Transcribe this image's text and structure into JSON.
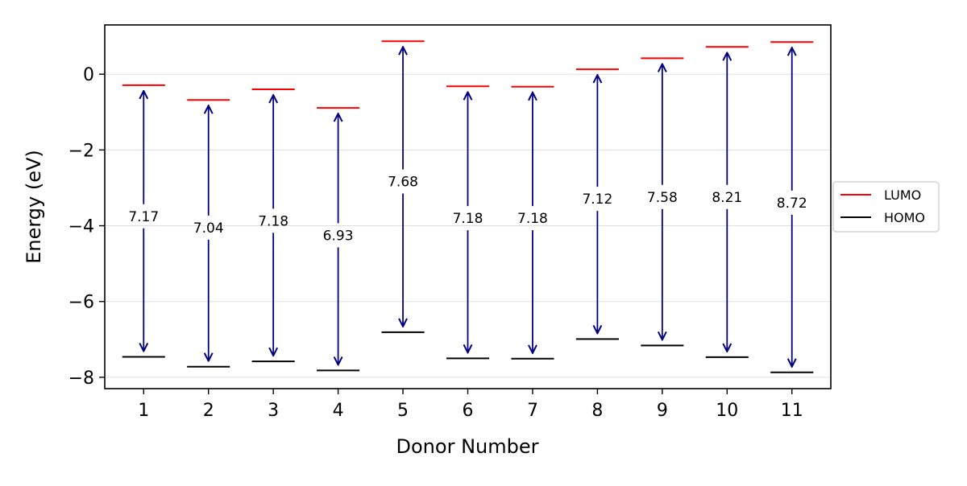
{
  "chart_data": {
    "type": "energy-level",
    "xlabel": "Donor Number",
    "ylabel": "Energy (eV)",
    "categories": [
      "1",
      "2",
      "3",
      "4",
      "5",
      "6",
      "7",
      "8",
      "9",
      "10",
      "11"
    ],
    "x": [
      1,
      2,
      3,
      4,
      5,
      6,
      7,
      8,
      9,
      10,
      11
    ],
    "xlim": [
      0.4,
      11.6
    ],
    "ylim": [
      -8.3,
      1.3
    ],
    "yticks": [
      0,
      -2,
      -4,
      -6,
      -8
    ],
    "ytick_labels": [
      "0",
      "−2",
      "−4",
      "−6",
      "−8"
    ],
    "grid": true,
    "legend_position": "right",
    "series": [
      {
        "name": "LUMO",
        "color": "#ff0000",
        "values": [
          -0.29,
          -0.68,
          -0.4,
          -0.89,
          0.87,
          -0.32,
          -0.33,
          0.13,
          0.42,
          0.72,
          0.85
        ]
      },
      {
        "name": "HOMO",
        "color": "#000000",
        "values": [
          -7.46,
          -7.72,
          -7.58,
          -7.82,
          -6.81,
          -7.5,
          -7.51,
          -6.99,
          -7.16,
          -7.47,
          -7.87
        ]
      }
    ],
    "gap_labels": [
      "7.17",
      "7.04",
      "7.18",
      "6.93",
      "7.68",
      "7.18",
      "7.18",
      "7.12",
      "7.58",
      "8.21",
      "8.72"
    ],
    "gap_label_y": [
      -3.75,
      -4.05,
      -3.87,
      -4.25,
      -2.83,
      -3.8,
      -3.8,
      -3.29,
      -3.24,
      -3.24,
      -3.39
    ],
    "arrow_color": "#000080"
  }
}
